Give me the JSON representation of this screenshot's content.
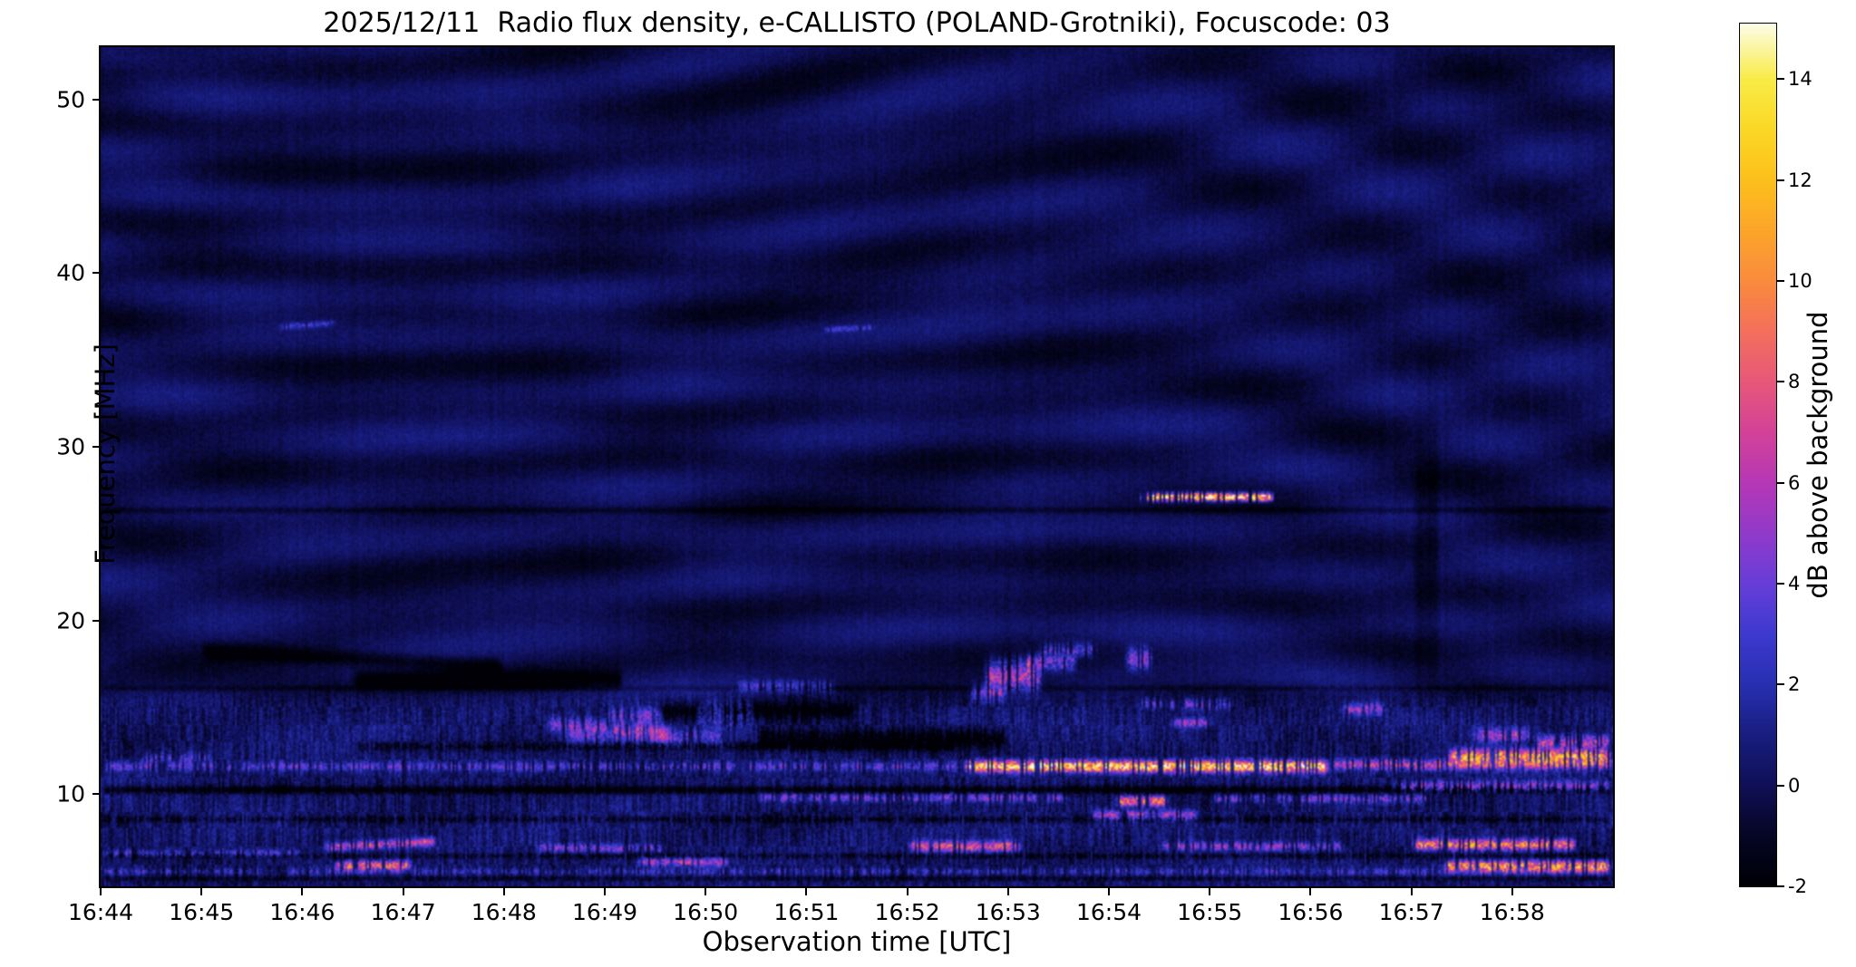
{
  "chart_data": {
    "type": "heatmap",
    "title": "2025/12/11  Radio flux density, e-CALLISTO (POLAND-Grotniki), Focuscode: 03",
    "xlabel": "Observation time [UTC]",
    "ylabel": "Frequency [MHz]",
    "x_start_utc": "16:44",
    "x_end_utc": "16:59",
    "x_minutes": 15,
    "x_tick_labels": [
      "16:44",
      "16:45",
      "16:46",
      "16:47",
      "16:48",
      "16:49",
      "16:50",
      "16:51",
      "16:52",
      "16:53",
      "16:54",
      "16:55",
      "16:56",
      "16:57",
      "16:58"
    ],
    "y_ticks": [
      10,
      20,
      30,
      40,
      50
    ],
    "f_min": 4.7,
    "f_max": 53.0,
    "grid": false,
    "colorbar": {
      "label": "dB above background",
      "ticks": [
        -2,
        0,
        2,
        4,
        6,
        8,
        10,
        12,
        14
      ],
      "vmin": -2,
      "vmax": 15.1,
      "colormap_stops": [
        [
          -2,
          [
            0,
            0,
            6
          ]
        ],
        [
          -1,
          [
            6,
            6,
            38
          ]
        ],
        [
          0,
          [
            16,
            16,
            88
          ]
        ],
        [
          1,
          [
            25,
            30,
            128
          ]
        ],
        [
          2,
          [
            40,
            48,
            178
          ]
        ],
        [
          3,
          [
            62,
            58,
            208
          ]
        ],
        [
          4,
          [
            104,
            62,
            216
          ]
        ],
        [
          5,
          [
            146,
            58,
            202
          ]
        ],
        [
          6,
          [
            182,
            56,
            182
          ]
        ],
        [
          7,
          [
            212,
            66,
            152
          ]
        ],
        [
          8,
          [
            232,
            88,
            122
          ]
        ],
        [
          9,
          [
            244,
            112,
            92
          ]
        ],
        [
          10,
          [
            250,
            140,
            62
          ]
        ],
        [
          11,
          [
            252,
            166,
            42
          ]
        ],
        [
          12,
          [
            253,
            192,
            28
          ]
        ],
        [
          13,
          [
            251,
            216,
            38
          ]
        ],
        [
          14,
          [
            249,
            236,
            72
          ]
        ],
        [
          15.1,
          [
            253,
            253,
            232
          ]
        ]
      ]
    },
    "background_model": {
      "base": -0.2,
      "fringe_amp": 0.85,
      "noise": 0.4,
      "low_band_top_mhz": 16.3,
      "stripe_amp": 1.7
    },
    "features_units": {
      "t0_t1": "minutes after 16:44 UTC",
      "f_df": "MHz (center, gaussian half-width)",
      "amp": "dB above background (negative = absorption/dark band)",
      "sp": "speckle/dash factor 0..1",
      "sl": "frequency drift MHz per minute"
    },
    "features": [
      {
        "t0": 10.3,
        "t1": 11.65,
        "f": 27.1,
        "df": 0.22,
        "amp": 14,
        "sp": 0.75
      },
      {
        "t0": 8.55,
        "t1": 12.2,
        "f": 11.6,
        "df": 0.32,
        "amp": 13,
        "sp": 0.5
      },
      {
        "t0": 12.2,
        "t1": 15,
        "f": 11.7,
        "df": 0.3,
        "amp": 6.5,
        "sp": 0.7
      },
      {
        "t0": 13.35,
        "t1": 15,
        "f": 12.2,
        "df": 0.38,
        "amp": 10,
        "sp": 0.6
      },
      {
        "t0": 0,
        "t1": 8.55,
        "f": 11.6,
        "df": 0.26,
        "amp": 3.2,
        "sp": 0.85
      },
      {
        "t0": 2.2,
        "t1": 3.35,
        "f": 7.1,
        "df": 0.24,
        "amp": 6,
        "sp": 0.5,
        "sl": 0.3
      },
      {
        "t0": 8.0,
        "t1": 9.15,
        "f": 7.0,
        "df": 0.3,
        "amp": 7,
        "sp": 0.45
      },
      {
        "t0": 13.0,
        "t1": 14.65,
        "f": 7.1,
        "df": 0.3,
        "amp": 9,
        "sp": 0.5
      },
      {
        "t0": 4.3,
        "t1": 5.6,
        "f": 6.9,
        "df": 0.25,
        "amp": 4,
        "sp": 0.6
      },
      {
        "t0": 10.5,
        "t1": 12.35,
        "f": 7.0,
        "df": 0.25,
        "amp": 4.5,
        "sp": 0.7
      },
      {
        "t0": 2.3,
        "t1": 3.1,
        "f": 5.9,
        "df": 0.25,
        "amp": 8,
        "sp": 0.4
      },
      {
        "t0": 13.3,
        "t1": 15,
        "f": 5.85,
        "df": 0.3,
        "amp": 10,
        "sp": 0.5
      },
      {
        "t0": 5.3,
        "t1": 6.25,
        "f": 6.1,
        "df": 0.25,
        "amp": 5,
        "sp": 0.5
      },
      {
        "t0": 0,
        "t1": 15,
        "f": 5.55,
        "df": 0.18,
        "amp": 2.4,
        "sp": 0.95
      },
      {
        "t0": 0,
        "t1": 2.0,
        "f": 6.6,
        "df": 0.2,
        "amp": 3,
        "sp": 0.8
      },
      {
        "t0": 10.05,
        "t1": 10.6,
        "f": 9.6,
        "df": 0.3,
        "amp": 9,
        "sp": 0.4
      },
      {
        "t0": 6.5,
        "t1": 9.6,
        "f": 9.8,
        "df": 0.25,
        "amp": 4,
        "sp": 0.8
      },
      {
        "t0": 11.0,
        "t1": 13.2,
        "f": 9.75,
        "df": 0.25,
        "amp": 4,
        "sp": 0.8
      },
      {
        "t0": 12.8,
        "t1": 15,
        "f": 10.45,
        "df": 0.3,
        "amp": 5,
        "sp": 0.75
      },
      {
        "t0": 9.8,
        "t1": 10.9,
        "f": 8.8,
        "df": 0.28,
        "amp": 5,
        "sp": 0.6
      },
      {
        "t0": 4.4,
        "t1": 5.7,
        "f": 13.8,
        "df": 0.45,
        "amp": 4.2,
        "sp": 0.55,
        "sl": -0.5
      },
      {
        "t0": 5.0,
        "t1": 5.6,
        "f": 14.5,
        "df": 0.5,
        "amp": 3.5,
        "sp": 0.6
      },
      {
        "t0": 8.75,
        "t1": 9.35,
        "f": 16.8,
        "df": 0.9,
        "amp": 6,
        "sp": 0.5
      },
      {
        "t0": 9.1,
        "t1": 9.7,
        "f": 17.6,
        "df": 0.5,
        "amp": 4.5,
        "sp": 0.6
      },
      {
        "t0": 10.3,
        "t1": 11.25,
        "f": 15.2,
        "df": 0.3,
        "amp": 4,
        "sp": 0.8
      },
      {
        "t0": 10.6,
        "t1": 11.05,
        "f": 14.1,
        "df": 0.25,
        "amp": 4.5,
        "sp": 0.6
      },
      {
        "t0": 6.3,
        "t1": 7.3,
        "f": 16.2,
        "df": 0.35,
        "amp": 3.2,
        "sp": 0.7
      },
      {
        "t0": 1.75,
        "t1": 2.35,
        "f": 37.0,
        "df": 0.18,
        "amp": 2.6,
        "sp": 0.3,
        "sl": 0.4
      },
      {
        "t0": 7.15,
        "t1": 7.7,
        "f": 36.8,
        "df": 0.16,
        "amp": 2.6,
        "sp": 0.3,
        "sl": 0.3
      },
      {
        "t0": 9.3,
        "t1": 9.9,
        "f": 18.3,
        "df": 0.4,
        "amp": 3.5,
        "sp": 0.7
      },
      {
        "t0": 12.3,
        "t1": 12.75,
        "f": 14.9,
        "df": 0.35,
        "amp": 4.5,
        "sp": 0.5
      },
      {
        "t0": 4.6,
        "t1": 6.2,
        "f": 13.3,
        "df": 0.5,
        "amp": 3.0,
        "sp": 0.6
      },
      {
        "t0": 5.9,
        "t1": 6.5,
        "f": 14.6,
        "df": 0.8,
        "amp": 3.0,
        "sp": 0.6
      },
      {
        "t0": 0.4,
        "t1": 1.1,
        "f": 12.1,
        "df": 0.3,
        "amp": 3.0,
        "sp": 0.7
      },
      {
        "t0": 13.6,
        "t1": 14.2,
        "f": 13.4,
        "df": 0.4,
        "amp": 5,
        "sp": 0.6
      },
      {
        "t0": 14.2,
        "t1": 15,
        "f": 13.0,
        "df": 0.4,
        "amp": 6,
        "sp": 0.6
      },
      {
        "t0": 8.6,
        "t1": 9.0,
        "f": 15.8,
        "df": 0.5,
        "amp": 4,
        "sp": 0.5
      },
      {
        "t0": 10.15,
        "t1": 10.45,
        "f": 17.8,
        "df": 0.6,
        "amp": 5,
        "sp": 0.5
      },
      {
        "t0": 5.5,
        "t1": 7.5,
        "f": 14.8,
        "df": 0.5,
        "amp": -2.2,
        "sp": 0
      },
      {
        "t0": 6.5,
        "t1": 9.0,
        "f": 13.2,
        "df": 0.6,
        "amp": -2.6,
        "sp": 0
      },
      {
        "t0": 2.5,
        "t1": 5.2,
        "f": 16.6,
        "df": 0.5,
        "amp": -2.0,
        "sp": 0
      },
      {
        "t0": 1.0,
        "t1": 4.0,
        "f": 17.8,
        "df": 0.45,
        "amp": -1.8,
        "sp": 0,
        "sl": -0.3
      },
      {
        "t0": 13.0,
        "t1": 13.3,
        "f": 24,
        "df": 7,
        "amp": -1.0,
        "sp": 0
      },
      {
        "t0": 0,
        "t1": 15,
        "f": 10.25,
        "df": 0.22,
        "amp": -2.5,
        "sp": 0
      },
      {
        "t0": 0,
        "t1": 15,
        "f": 8.55,
        "df": 0.18,
        "amp": -1.8,
        "sp": 0.3
      },
      {
        "t0": 0,
        "t1": 15,
        "f": 6.45,
        "df": 0.16,
        "amp": -1.6,
        "sp": 0.3
      },
      {
        "t0": 0,
        "t1": 15,
        "f": 5.15,
        "df": 0.13,
        "amp": -1.4,
        "sp": 0
      },
      {
        "t0": 2.5,
        "t1": 8.5,
        "f": 12.75,
        "df": 0.25,
        "amp": -1.8,
        "sp": 0.2
      },
      {
        "t0": 0,
        "t1": 15,
        "f": 26.35,
        "df": 0.18,
        "amp": -1.1,
        "sp": 0
      },
      {
        "t0": 0,
        "t1": 15,
        "f": 16.1,
        "df": 0.14,
        "amp": -0.9,
        "sp": 0
      }
    ]
  }
}
